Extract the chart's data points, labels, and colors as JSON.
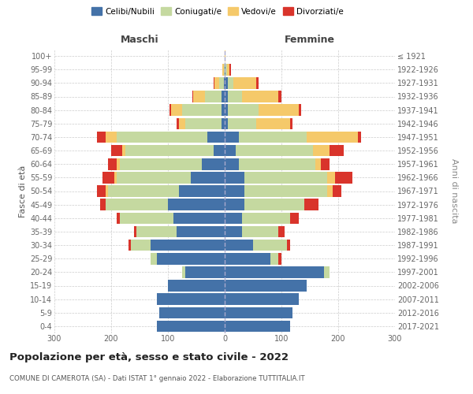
{
  "age_groups": [
    "0-4",
    "5-9",
    "10-14",
    "15-19",
    "20-24",
    "25-29",
    "30-34",
    "35-39",
    "40-44",
    "45-49",
    "50-54",
    "55-59",
    "60-64",
    "65-69",
    "70-74",
    "75-79",
    "80-84",
    "85-89",
    "90-94",
    "95-99",
    "100+"
  ],
  "birth_years": [
    "2017-2021",
    "2012-2016",
    "2007-2011",
    "2002-2006",
    "1997-2001",
    "1992-1996",
    "1987-1991",
    "1982-1986",
    "1977-1981",
    "1972-1976",
    "1967-1971",
    "1962-1966",
    "1957-1961",
    "1952-1956",
    "1947-1951",
    "1942-1946",
    "1937-1941",
    "1932-1936",
    "1927-1931",
    "1922-1926",
    "≤ 1921"
  ],
  "maschi": {
    "celibi": [
      120,
      115,
      120,
      100,
      70,
      120,
      130,
      85,
      90,
      100,
      80,
      60,
      40,
      20,
      30,
      5,
      5,
      5,
      2,
      0,
      0
    ],
    "coniugati": [
      0,
      0,
      0,
      0,
      5,
      10,
      35,
      70,
      95,
      110,
      125,
      130,
      145,
      155,
      160,
      65,
      70,
      30,
      8,
      2,
      0
    ],
    "vedovi": [
      0,
      0,
      0,
      0,
      0,
      0,
      0,
      0,
      0,
      0,
      5,
      5,
      5,
      5,
      20,
      10,
      20,
      20,
      8,
      2,
      0
    ],
    "divorziati": [
      0,
      0,
      0,
      0,
      0,
      0,
      5,
      5,
      5,
      10,
      15,
      20,
      15,
      20,
      15,
      5,
      2,
      2,
      2,
      0,
      0
    ]
  },
  "femmine": {
    "nubili": [
      115,
      120,
      130,
      145,
      175,
      80,
      50,
      30,
      30,
      35,
      35,
      35,
      25,
      20,
      25,
      5,
      5,
      5,
      5,
      2,
      0
    ],
    "coniugate": [
      0,
      0,
      0,
      0,
      10,
      15,
      60,
      65,
      85,
      105,
      145,
      145,
      135,
      135,
      120,
      50,
      55,
      25,
      10,
      2,
      0
    ],
    "vedove": [
      0,
      0,
      0,
      0,
      0,
      0,
      0,
      0,
      0,
      0,
      10,
      15,
      10,
      30,
      90,
      60,
      70,
      65,
      40,
      5,
      2
    ],
    "divorziate": [
      0,
      0,
      0,
      0,
      0,
      5,
      5,
      10,
      15,
      25,
      15,
      30,
      15,
      25,
      5,
      5,
      5,
      5,
      5,
      2,
      0
    ]
  },
  "colors": {
    "celibi": "#4472a8",
    "coniugati": "#c5d9a0",
    "vedovi": "#f5c96a",
    "divorziati": "#d9342b"
  },
  "xlim": 300,
  "title": "Popolazione per età, sesso e stato civile - 2022",
  "subtitle": "COMUNE DI CAMEROTA (SA) - Dati ISTAT 1° gennaio 2022 - Elaborazione TUTTITALIA.IT",
  "ylabel_left": "Fasce di età",
  "ylabel_right": "Anni di nascita",
  "xlabel_left": "Maschi",
  "xlabel_right": "Femmine"
}
